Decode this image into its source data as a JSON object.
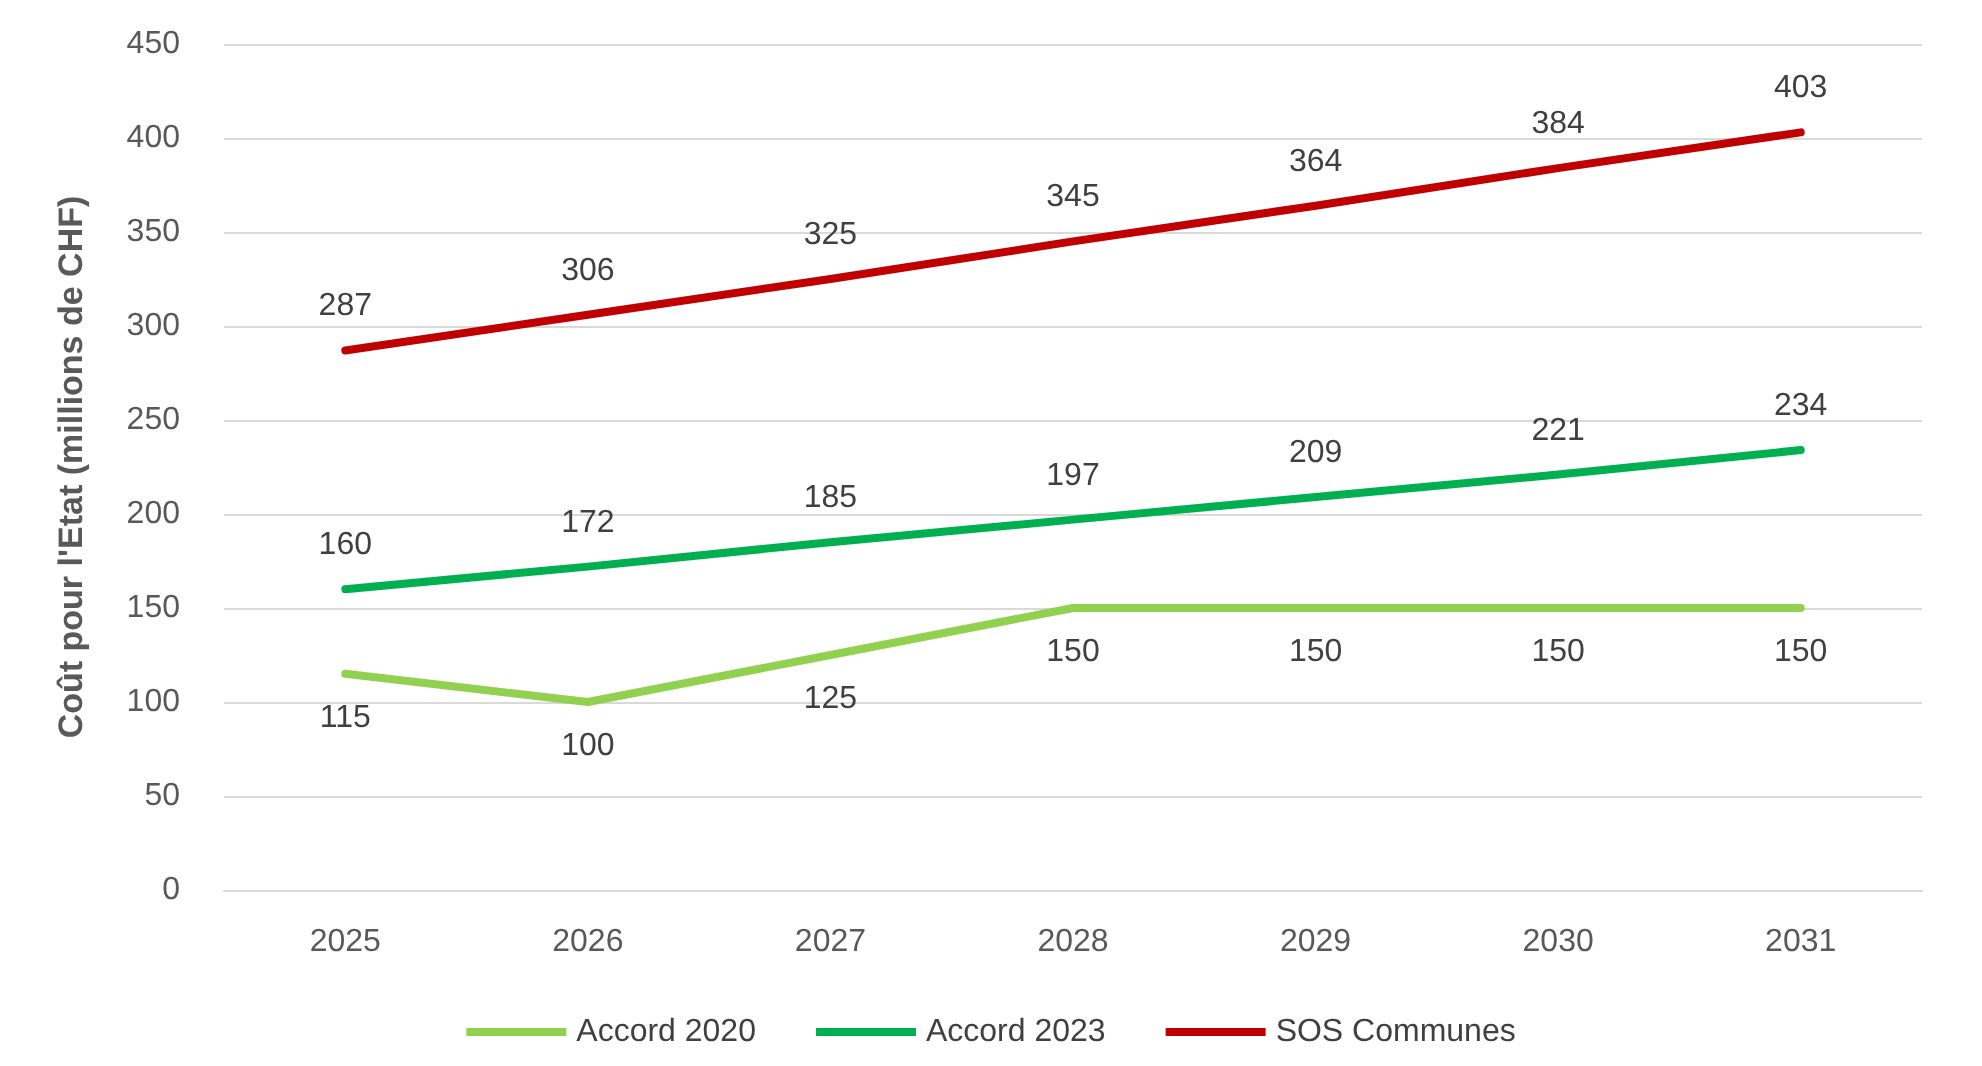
{
  "chart_data": {
    "type": "line",
    "ylabel": "Coût pour l'Etat (millions de CHF)",
    "categories": [
      "2025",
      "2026",
      "2027",
      "2028",
      "2029",
      "2030",
      "2031"
    ],
    "series": [
      {
        "name": "Accord 2020",
        "color": "#92d050",
        "values": [
          115,
          100,
          125,
          150,
          150,
          150,
          150
        ]
      },
      {
        "name": "Accord 2023",
        "color": "#00b050",
        "values": [
          160,
          172,
          185,
          197,
          209,
          221,
          234
        ]
      },
      {
        "name": "SOS Communes",
        "color": "#c00000",
        "values": [
          287,
          306,
          325,
          345,
          364,
          384,
          403
        ]
      }
    ],
    "ylim": [
      0,
      450
    ],
    "yticks": [
      0,
      50,
      100,
      150,
      200,
      250,
      300,
      350,
      400,
      450
    ],
    "grid": "y",
    "legend": "bottom",
    "marker": "none",
    "line_style": "solid",
    "data_labels": true
  }
}
